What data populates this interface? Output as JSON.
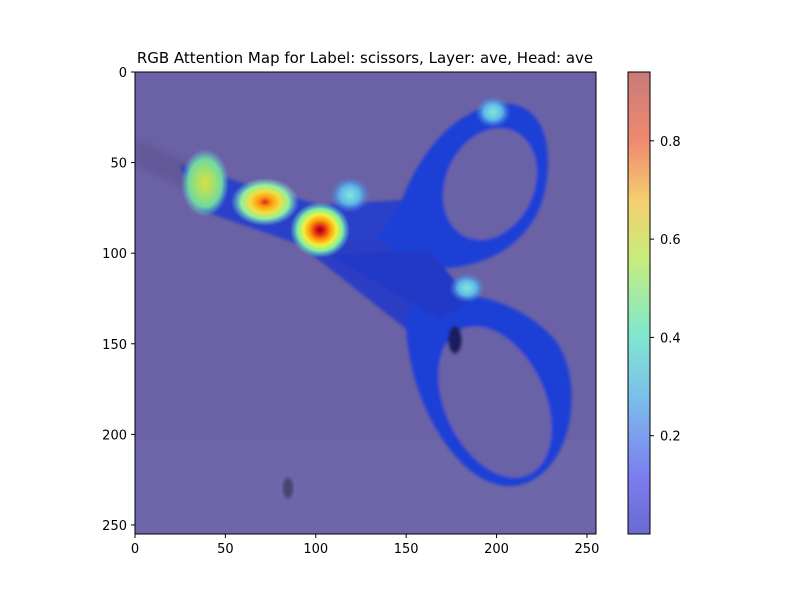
{
  "title": "RGB Attention Map for Label: scissors, Layer: ave, Head: ave",
  "image": {
    "subject": "scissors",
    "background_color": "#6b62a6",
    "object_color": "#1f3fd0",
    "colormap": "jet"
  },
  "axes": {
    "x_ticks": [
      "0",
      "50",
      "100",
      "150",
      "200",
      "250"
    ],
    "y_ticks": [
      "0",
      "50",
      "100",
      "150",
      "200",
      "250"
    ],
    "x_range": [
      0,
      255
    ],
    "y_range": [
      255,
      0
    ]
  },
  "colorbar": {
    "ticks": [
      "0.2",
      "0.4",
      "0.6",
      "0.8"
    ],
    "range": [
      0.0,
      0.94
    ]
  },
  "hotspots": [
    {
      "name": "hotspot-blade-tip",
      "value": 0.55
    },
    {
      "name": "hotspot-blade-mid",
      "value": 0.75
    },
    {
      "name": "hotspot-pivot",
      "value": 0.94
    },
    {
      "name": "hotspot-pivot-upper",
      "value": 0.3
    },
    {
      "name": "hotspot-top-handle",
      "value": 0.3
    },
    {
      "name": "hotspot-lower-handle",
      "value": 0.35
    }
  ]
}
